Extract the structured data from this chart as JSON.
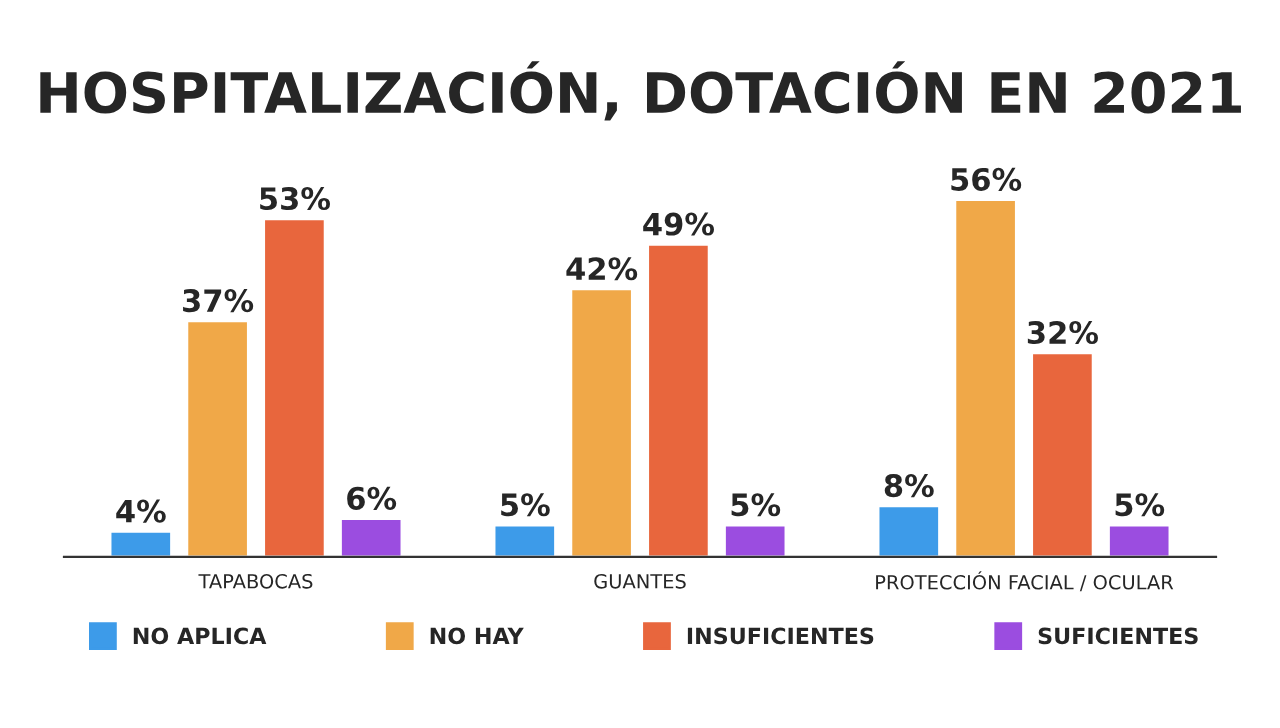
{
  "chart_data": {
    "type": "bar",
    "title": "HOSPITALIZACIÓN, DOTACIÓN EN 2021",
    "categories": [
      "TAPABOCAS",
      "GUANTES",
      "PROTECCIÓN FACIAL / OCULAR"
    ],
    "series": [
      {
        "name": "NO APLICA",
        "color": "#3d9be9",
        "values": [
          4,
          5,
          8
        ],
        "value_labels": [
          "4%",
          "5%",
          "8%"
        ]
      },
      {
        "name": "NO HAY",
        "color": "#f0a848",
        "values": [
          37,
          42,
          56
        ],
        "value_labels": [
          "37%",
          "42%",
          "56%"
        ]
      },
      {
        "name": "INSUFICIENTES",
        "color": "#e8663d",
        "values": [
          53,
          49,
          32
        ],
        "value_labels": [
          "53%",
          "49%",
          "32%"
        ]
      },
      {
        "name": "SUFICIENTES",
        "color": "#9b4de0",
        "values": [
          6,
          5,
          5
        ],
        "value_labels": [
          "6%",
          "5%",
          "5%"
        ]
      }
    ],
    "legend": "bottom",
    "grid": false
  }
}
